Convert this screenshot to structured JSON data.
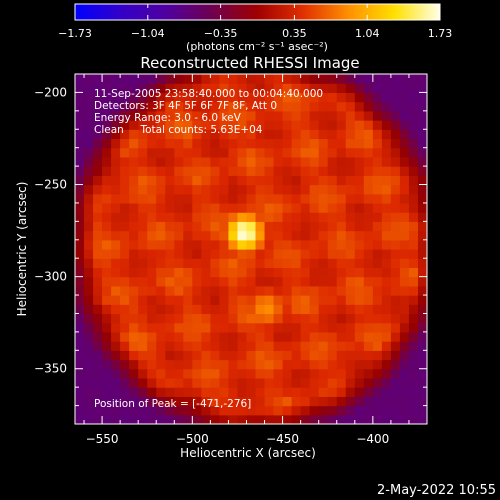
{
  "chart_data": {
    "type": "heatmap",
    "title": "Reconstructed RHESSI Image",
    "xlabel": "Heliocentric X (arcsec)",
    "ylabel": "Heliocentric Y (arcsec)",
    "xlim": [
      -565,
      -370
    ],
    "ylim": [
      -380,
      -190
    ],
    "x_ticks": [
      -550,
      -500,
      -450,
      -400
    ],
    "x_tick_labels": [
      "−550",
      "−500",
      "−450",
      "−400"
    ],
    "y_ticks": [
      -200,
      -250,
      -300,
      -350
    ],
    "y_tick_labels": [
      "−200",
      "−250",
      "−300",
      "−350"
    ],
    "colorbar": {
      "min": -1.73,
      "max": 1.73,
      "ticks": [
        -1.73,
        -1.04,
        -0.35,
        0.35,
        1.04,
        1.73
      ],
      "tick_labels": [
        "−1.73",
        "−1.04",
        "−0.35",
        "0.35",
        "1.04",
        "1.73"
      ],
      "colors": [
        "#0000ff",
        "#3300c8",
        "#5000a0",
        "#6e0050",
        "#a00000",
        "#e03000",
        "#ff9000",
        "#ffe000",
        "#ffffe8"
      ]
    },
    "units_label": "(photons cm⁻² s⁻¹ asec⁻²)",
    "annotations": [
      "11-Sep-2005 23:58:40.000 to 00:04:40.000",
      "Detectors: 3F 4F 5F 6F 7F 8F, Att 0",
      "Energy Range: 3.0 - 6.0 keV",
      "Clean     Total counts: 5.63E+04"
    ],
    "peak_label": "Position of Peak = [-471,-276]",
    "peak": [
      -471,
      -276
    ],
    "sources": [
      {
        "x": -471,
        "y": -276,
        "peak": 1.73
      },
      {
        "x": -459,
        "y": -317,
        "peak": 1.05
      }
    ],
    "background_level": 0.55
  },
  "footer": {
    "date": "2-May-2022 10:55"
  }
}
